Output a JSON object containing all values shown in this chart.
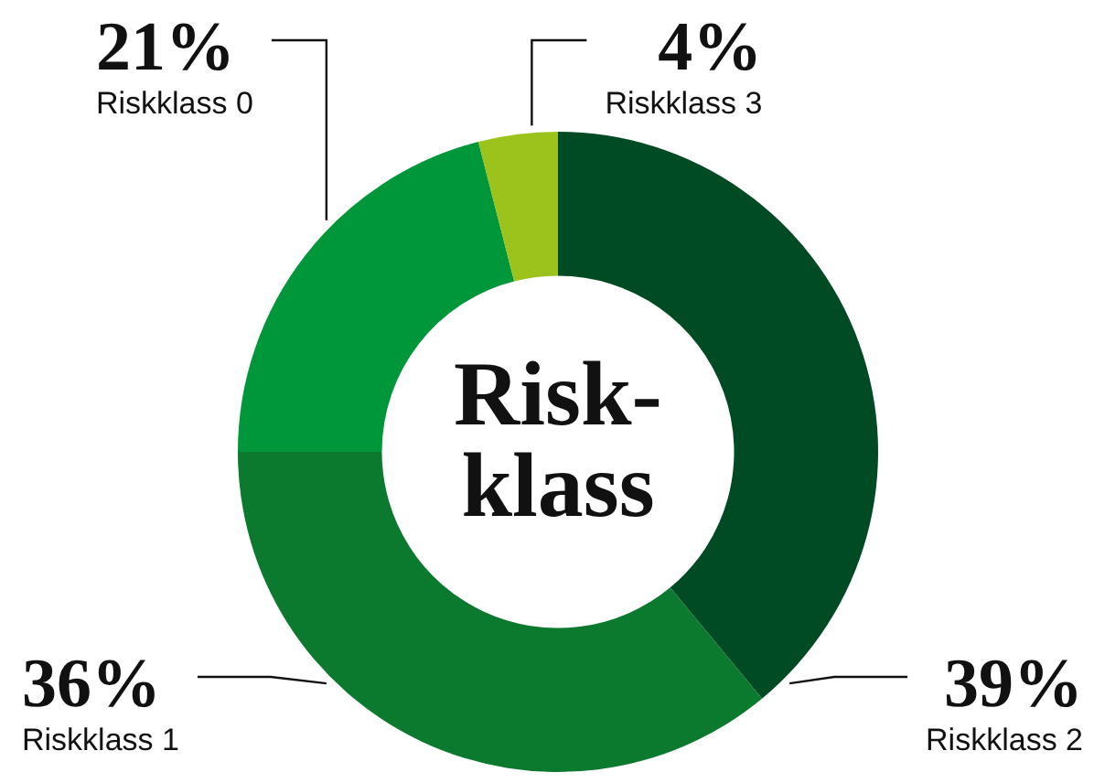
{
  "chart_data": {
    "type": "donut",
    "title": "Risk-\nklass",
    "categories": [
      "Riskklass 2",
      "Riskklass 1",
      "Riskklass 0",
      "Riskklass 3"
    ],
    "values": [
      39,
      36,
      21,
      4
    ],
    "value_labels": [
      "39%",
      "36%",
      "21%",
      "4%"
    ],
    "colors": [
      "#004b23",
      "#0b7a2f",
      "#00963a",
      "#9cc31b"
    ],
    "legend": false
  }
}
